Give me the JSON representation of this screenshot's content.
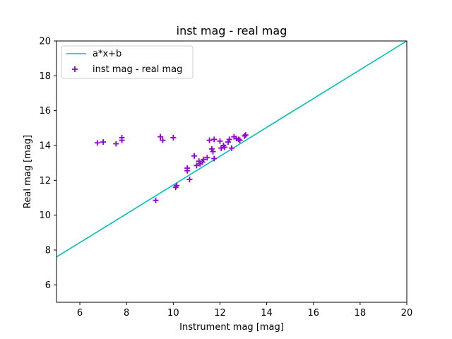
{
  "chart_data": {
    "type": "scatter",
    "title": "inst mag - real mag",
    "xlabel": "Instrument mag [mag]",
    "ylabel": "Real mag [mag]",
    "xlim": [
      5,
      20
    ],
    "ylim": [
      5,
      20
    ],
    "xticks": [
      6,
      8,
      10,
      12,
      14,
      16,
      18,
      20
    ],
    "yticks": [
      6,
      8,
      10,
      12,
      14,
      16,
      18,
      20
    ],
    "grid": false,
    "legend_position": "upper-left",
    "series": [
      {
        "name": "a*x+b",
        "kind": "line",
        "color": "#00bfbf",
        "x": [
          5,
          20
        ],
        "y": [
          7.6,
          20.0
        ]
      },
      {
        "name": "inst mag - real mag",
        "kind": "scatter",
        "marker": "plus",
        "color": "#9400d3",
        "points": [
          [
            6.75,
            14.15
          ],
          [
            7.0,
            14.2
          ],
          [
            7.55,
            14.1
          ],
          [
            7.8,
            14.3
          ],
          [
            7.8,
            14.45
          ],
          [
            9.25,
            10.85
          ],
          [
            9.45,
            14.5
          ],
          [
            9.55,
            14.3
          ],
          [
            10.0,
            14.45
          ],
          [
            10.1,
            11.6
          ],
          [
            10.15,
            11.7
          ],
          [
            10.6,
            12.55
          ],
          [
            10.6,
            12.7
          ],
          [
            10.7,
            12.05
          ],
          [
            10.9,
            13.4
          ],
          [
            11.0,
            12.85
          ],
          [
            11.1,
            13.1
          ],
          [
            11.15,
            12.95
          ],
          [
            11.25,
            13.05
          ],
          [
            11.3,
            13.2
          ],
          [
            11.45,
            13.3
          ],
          [
            11.55,
            14.3
          ],
          [
            11.65,
            13.8
          ],
          [
            11.7,
            13.65
          ],
          [
            11.75,
            14.35
          ],
          [
            11.75,
            13.25
          ],
          [
            12.0,
            14.25
          ],
          [
            12.05,
            13.85
          ],
          [
            12.15,
            14.0
          ],
          [
            12.2,
            13.9
          ],
          [
            12.35,
            14.2
          ],
          [
            12.4,
            14.35
          ],
          [
            12.5,
            13.85
          ],
          [
            12.6,
            14.5
          ],
          [
            12.7,
            14.4
          ],
          [
            12.8,
            14.35
          ],
          [
            12.85,
            14.3
          ],
          [
            13.05,
            14.55
          ],
          [
            13.1,
            14.6
          ]
        ]
      }
    ]
  }
}
